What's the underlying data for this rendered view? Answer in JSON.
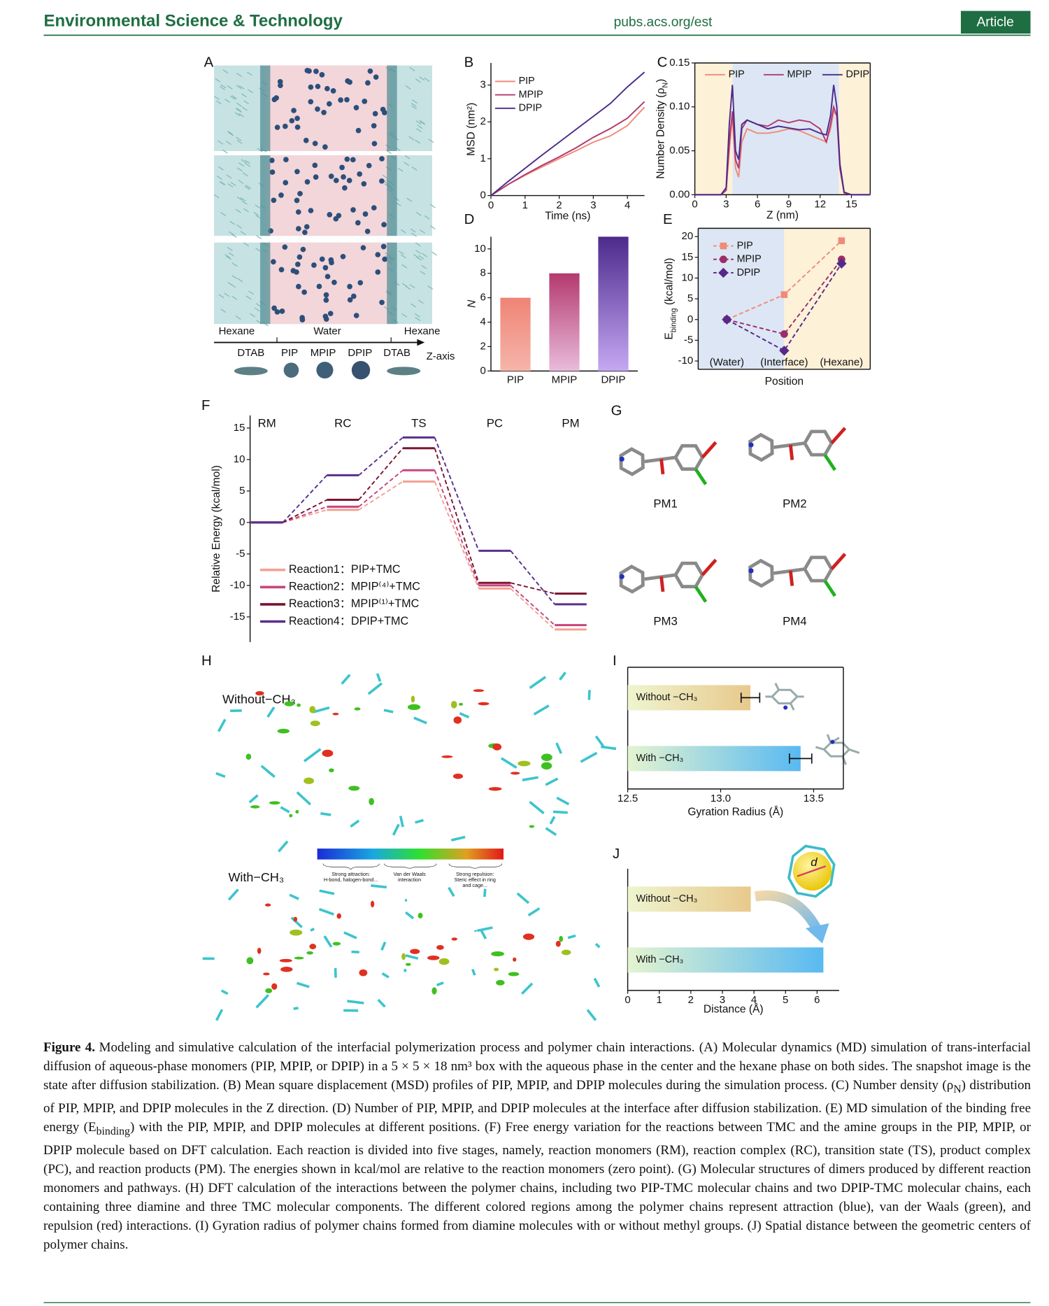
{
  "header": {
    "journal": "Environmental Science & Technology",
    "url": "pubs.acs.org/est",
    "type": "Article"
  },
  "figure": {
    "A": {
      "panel": "A",
      "labels": [
        "Hexane",
        "Water",
        "Hexane",
        "DTAB",
        "PIP",
        "MPIP",
        "DPIP",
        "DTAB",
        "Z-axis"
      ]
    },
    "G": {
      "panel": "G",
      "labels": [
        "PM1",
        "PM2",
        "PM3",
        "PM4"
      ]
    },
    "H": {
      "panel": "H",
      "labels": [
        "Without−CH₃",
        "With−CH₃"
      ],
      "colorbar": [
        [
          "Strong attraction:",
          "H-bond, halogen-bond..."
        ],
        [
          "Van der Waals",
          "interaction"
        ],
        [
          "Strong repulsion:",
          "Steric effect in ring",
          "and cage..."
        ]
      ]
    },
    "J": {
      "symbol": "d"
    }
  },
  "chart_data": [
    {
      "type": "line",
      "panel": "B",
      "xlabel": "Time (ns)",
      "ylabel": "MSD (nm²)",
      "x": [
        0,
        0.5,
        1,
        1.5,
        2,
        2.5,
        3,
        3.5,
        4,
        4.5
      ],
      "xlim": [
        0,
        4.5
      ],
      "xticks": [
        0,
        1,
        2,
        3,
        4
      ],
      "ylim": [
        0,
        3.6
      ],
      "yticks": [
        0,
        1,
        2,
        3
      ],
      "legend": "upper left",
      "series": [
        {
          "name": "PIP",
          "color": "#ef8a78",
          "values": [
            0,
            0.3,
            0.55,
            0.78,
            1.0,
            1.22,
            1.45,
            1.62,
            1.9,
            2.4
          ]
        },
        {
          "name": "MPIP",
          "color": "#b23a6e",
          "values": [
            0,
            0.3,
            0.57,
            0.82,
            1.05,
            1.3,
            1.58,
            1.82,
            2.1,
            2.55
          ]
        },
        {
          "name": "DPIP",
          "color": "#4b2a8c",
          "values": [
            0,
            0.38,
            0.74,
            1.1,
            1.45,
            1.8,
            2.15,
            2.5,
            2.95,
            3.35
          ]
        }
      ]
    },
    {
      "type": "line",
      "panel": "C",
      "xlabel": "Z (nm)",
      "ylabel": [
        "Number Density (ρ",
        "N",
        ")"
      ],
      "x": [
        0,
        2.5,
        3,
        3.3,
        3.6,
        3.9,
        4.2,
        4.5,
        5,
        6,
        7,
        8,
        9,
        10,
        11,
        12,
        12.6,
        13,
        13.3,
        13.6,
        13.9,
        14.3,
        15,
        16.8
      ],
      "xlim": [
        0,
        16.8
      ],
      "xticks": [
        0,
        3,
        6,
        9,
        12,
        15
      ],
      "ylim": [
        0,
        0.15
      ],
      "yticks": [
        {
          "value": 0,
          "label": "0.00"
        },
        0.05,
        {
          "value": 0.1,
          "label": "0.10"
        },
        0.15
      ],
      "legend": "upper",
      "regions": [
        {
          "range": [
            0,
            3.6
          ],
          "color": "#fdf1d8"
        },
        {
          "range": [
            3.6,
            13.8
          ],
          "color": "#dde6f4"
        },
        {
          "range": [
            13.8,
            16.8
          ],
          "color": "#fdf1d8"
        }
      ],
      "series": [
        {
          "name": "PIP",
          "color": "#ef8a78",
          "values": [
            0,
            0,
            0.005,
            0.05,
            0.09,
            0.03,
            0.02,
            0.06,
            0.075,
            0.07,
            0.07,
            0.072,
            0.075,
            0.073,
            0.068,
            0.063,
            0.06,
            0.075,
            0.095,
            0.09,
            0.03,
            0.002,
            0,
            0
          ]
        },
        {
          "name": "MPIP",
          "color": "#b23a6e",
          "values": [
            0,
            0,
            0.005,
            0.06,
            0.095,
            0.04,
            0.03,
            0.075,
            0.085,
            0.08,
            0.078,
            0.085,
            0.082,
            0.085,
            0.083,
            0.075,
            0.06,
            0.08,
            0.1,
            0.09,
            0.03,
            0.002,
            0,
            0
          ]
        },
        {
          "name": "DPIP",
          "color": "#4b2a8c",
          "values": [
            0,
            0,
            0.008,
            0.08,
            0.125,
            0.05,
            0.04,
            0.08,
            0.085,
            0.08,
            0.075,
            0.078,
            0.076,
            0.074,
            0.075,
            0.07,
            0.068,
            0.09,
            0.125,
            0.1,
            0.035,
            0.003,
            0,
            0
          ]
        }
      ]
    },
    {
      "type": "bar",
      "panel": "D",
      "ylabel": "N",
      "categories": [
        "PIP",
        "MPIP",
        "DPIP"
      ],
      "values": [
        6,
        8,
        11
      ],
      "colors": [
        [
          "#ef8476",
          "#f6b5aa"
        ],
        [
          "#b43a6e",
          "#e9bbdc"
        ],
        [
          "#4c2a8c",
          "#c5a8f3"
        ]
      ],
      "ylim": [
        0,
        11
      ],
      "yticks": [
        0,
        2,
        4,
        6,
        8,
        10
      ]
    },
    {
      "type": "line",
      "panel": "E",
      "xlabel": "Position",
      "ylabel": [
        "E",
        "binding",
        " (kcal/mol)"
      ],
      "categories": [
        "(Water)",
        "(Interface)",
        "(Hexane)"
      ],
      "ylim": [
        -12,
        22
      ],
      "yticks": [
        -10,
        -5,
        0,
        5,
        10,
        15,
        20
      ],
      "linestyle": "dashed",
      "legend": "upper left",
      "regions": [
        {
          "range": [
            0,
            1
          ],
          "color": "#dde6f4"
        },
        {
          "range": [
            1,
            2
          ],
          "color": "#fdf1d8"
        }
      ],
      "series": [
        {
          "name": "PIP",
          "color": "#f08a7a",
          "marker": "square",
          "values": [
            0,
            6,
            19
          ]
        },
        {
          "name": "MPIP",
          "color": "#9b2e6a",
          "marker": "circle",
          "values": [
            0,
            -3.5,
            14.5
          ]
        },
        {
          "name": "DPIP",
          "color": "#55288a",
          "marker": "diamond",
          "values": [
            0,
            -7.5,
            13.5
          ]
        }
      ]
    },
    {
      "type": "energy",
      "panel": "F",
      "ylabel": "Relative Energy (kcal/mol)",
      "categories": [
        "RM",
        "RC",
        "TS",
        "PC",
        "PM"
      ],
      "ylim": [
        -19,
        17
      ],
      "yticks": [
        -15,
        -10,
        -5,
        0,
        5,
        10,
        15
      ],
      "legend": "lower left",
      "series": [
        {
          "name": "Reaction1：PIP+TMC",
          "color": "#f4a092",
          "values": [
            0,
            2.0,
            6.5,
            -10.5,
            -17
          ]
        },
        {
          "name": "Reaction2：MPIP⁽⁴⁾+TMC",
          "color": "#c8457a",
          "values": [
            0,
            2.5,
            8.3,
            -10.0,
            -16.3
          ]
        },
        {
          "name": "Reaction3：MPIP⁽¹⁾+TMC",
          "color": "#7a1530",
          "values": [
            0,
            3.6,
            11.8,
            -9.6,
            -11.3
          ]
        },
        {
          "name": "Reaction4：DPIP+TMC",
          "color": "#5a2e8c",
          "values": [
            0,
            7.5,
            13.5,
            -4.5,
            -13
          ]
        }
      ]
    },
    {
      "type": "barh",
      "panel": "I",
      "xlabel": "Gyration Radius (Å)",
      "categories": [
        "Without −CH₃",
        "With −CH₃"
      ],
      "values": [
        13.16,
        13.43
      ],
      "errors": [
        0.05,
        0.06
      ],
      "colors": [
        [
          "#eef5cf",
          "#e8c98c"
        ],
        [
          "#e4f4d0",
          "#58b9f2"
        ]
      ],
      "xlim": [
        12.5,
        13.66
      ],
      "xticks": [
        12.5,
        {
          "value": 13,
          "label": "13.0"
        },
        13.5
      ]
    },
    {
      "type": "barh",
      "panel": "J",
      "xlabel": "Distance (Å)",
      "categories": [
        "Without −CH₃",
        "With −CH₃"
      ],
      "values": [
        3.9,
        6.2
      ],
      "colors": [
        [
          "#eef5cf",
          "#e8c98c"
        ],
        [
          "#e4f4d0",
          "#58b9f2"
        ]
      ],
      "xlim": [
        0,
        6.7
      ],
      "xticks": [
        0,
        1,
        2,
        3,
        4,
        5,
        6
      ]
    }
  ],
  "caption": {
    "label": "Figure 4.",
    "text": [
      "Modeling and simulative calculation of the interfacial polymerization process and polymer chain interactions. (A) Molecular dynamics (MD) simulation of trans-interfacial diffusion of aqueous-phase monomers (PIP, MPIP, or DPIP) in a 5 × 5 × 18 nm³ box with the aqueous phase in the center and the hexane phase on both sides. The snapshot image is the state after diffusion stabilization. (B) Mean square displacement (MSD) profiles of PIP, MPIP, and DPIP molecules during the simulation process. (C) Number density (ρ",
      "N",
      ") distribution of PIP, MPIP, and DPIP molecules in the Z direction. (D) Number of PIP, MPIP, and DPIP molecules at the interface after diffusion stabilization. (E) MD simulation of the binding free energy (E",
      "binding",
      ") with the PIP, MPIP, and DPIP molecules at different positions. (F) Free energy variation for the reactions between TMC and the amine groups in the PIP, MPIP, or DPIP molecule based on DFT calculation. Each reaction is divided into five stages, namely, reaction monomers (RM), reaction complex (RC), transition state (TS), product complex (PC), and reaction products (PM). The energies shown in kcal/mol are relative to the reaction monomers (zero point). (G) Molecular structures of dimers produced by different reaction monomers and pathways. (H) DFT calculation of the interactions between the polymer chains, including two PIP-TMC molecular chains and two DPIP-TMC molecular chains, each containing three diamine and three TMC molecular components. The different colored regions among the polymer chains represent attraction (blue), van der Waals (green), and repulsion (red) interactions. (I) Gyration radius of polymer chains formed from diamine molecules with or without methyl groups. (J) Spatial distance between the geometric centers of polymer chains."
    ]
  }
}
